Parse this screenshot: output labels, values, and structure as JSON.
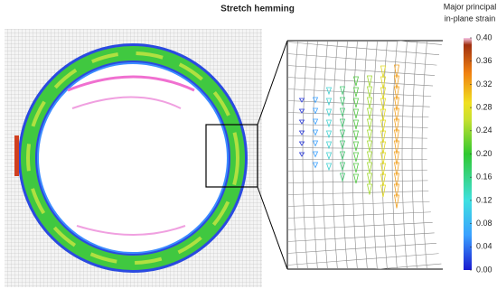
{
  "chart_data": {
    "type": "colorbar",
    "title": "Stretch hemming",
    "colorbar_title": [
      "Major principal",
      "in-plane strain"
    ],
    "ylim": [
      0,
      0.4
    ],
    "yticks": [
      {
        "value": 0,
        "label": "0.00"
      },
      {
        "value": 0.04,
        "label": "0.04"
      },
      {
        "value": 0.08,
        "label": "0.08"
      },
      {
        "value": 0.12,
        "label": "0.12"
      },
      {
        "value": 0.16,
        "label": "0.16"
      },
      {
        "value": 0.2,
        "label": "0.20"
      },
      {
        "value": 0.24,
        "label": "0.24"
      },
      {
        "value": 0.28,
        "label": "0.28"
      },
      {
        "value": 0.32,
        "label": "0.32"
      },
      {
        "value": 0.36,
        "label": "0.36"
      },
      {
        "value": 0.4,
        "label": "0.40"
      }
    ]
  }
}
